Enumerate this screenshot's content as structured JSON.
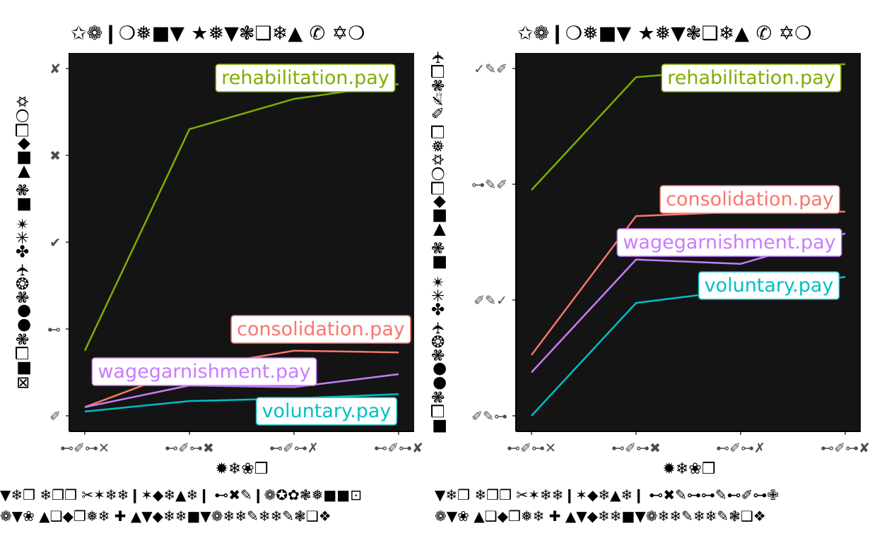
{
  "chart_data": [
    {
      "type": "line",
      "title": "✩❁❙❍❅■▼ ★❅▼❃❑❄▲ ✆ ✡❍",
      "xlabel": "✹❄❀❒",
      "ylabel": "⊠■❒❃●●❃❂✈ ✤✳✴ ■❃ ▶■◆❒❍✡",
      "x": [
        "⊷✐⊶✕",
        "⊷✐⊶✖",
        "⊷✐⊶✗",
        "⊷✐⊶✘"
      ],
      "y_ticks": [
        "✐",
        "⊷",
        "✔",
        "✖",
        "✘"
      ],
      "ylim": [
        0,
        4
      ],
      "grid": false,
      "background": "#141414",
      "caption": [
        "▼❄❒ ❄❒❒ ✂✶❄❄❙✶◆❄▲❄❙ ⊷✖✎❙❁✪✿❃❅■■⊡",
        "❁▼❀ ▲❑◆❒❅❄ ✚ ▲▼◆❄❄■▼❁❄❄✎❄❄✎❃❑❖"
      ],
      "series": [
        {
          "name": "rehabilitation.pay",
          "color": "#7cae00",
          "values": [
            0.75,
            3.3,
            3.65,
            3.82
          ]
        },
        {
          "name": "consolidation.pay",
          "color": "#f8766d",
          "values": [
            0.1,
            0.55,
            0.75,
            0.73
          ]
        },
        {
          "name": "wagegarnishment.pay",
          "color": "#c77cff",
          "values": [
            0.1,
            0.35,
            0.33,
            0.48
          ]
        },
        {
          "name": "voluntary.pay",
          "color": "#00bfc4",
          "values": [
            0.05,
            0.17,
            0.2,
            0.25
          ]
        }
      ]
    },
    {
      "type": "line",
      "title": "✩❁❙❍❅■▼ ★❅▼❃❑❄▲ ✆ ✡❍",
      "xlabel": "✹❄❀❒",
      "ylabel": "■❒❃●●❃❂✈ ✤✳✴ ■❃ ▶■◆❒❍✡❅❒ ✎✍❃❒✈",
      "x": [
        "⊷✐⊶✕",
        "⊷✐⊶✖",
        "⊷✐⊶✗",
        "⊷✐⊶✘"
      ],
      "y_ticks": [
        "✐✎⊶",
        "✐✎✓",
        "⊶✎✐",
        "✓✎✐"
      ],
      "ylim": [
        0,
        4
      ],
      "grid": false,
      "background": "#141414",
      "caption": [
        "▼❄❒ ❄❒❒ ✂✶❄❄❙✶◆❄▲❄❙ ⊷✖✎⊶⊶✎⊷✐⊶✙",
        "❁▼❀ ▲❑◆❒❅❄ ✚ ▲▼◆❄❄■▼❁❄❄✎❄❄✎❃❑❖"
      ],
      "series": [
        {
          "name": "rehabilitation.pay",
          "color": "#7cae00",
          "values": [
            2.6,
            3.9,
            4.0,
            4.05
          ]
        },
        {
          "name": "consolidation.pay",
          "color": "#f8766d",
          "values": [
            0.7,
            2.3,
            2.35,
            2.35
          ]
        },
        {
          "name": "wagegarnishment.pay",
          "color": "#c77cff",
          "values": [
            0.5,
            1.8,
            1.75,
            2.1
          ]
        },
        {
          "name": "voluntary.pay",
          "color": "#00bfc4",
          "values": [
            0.0,
            1.3,
            1.45,
            1.6
          ]
        }
      ]
    }
  ]
}
